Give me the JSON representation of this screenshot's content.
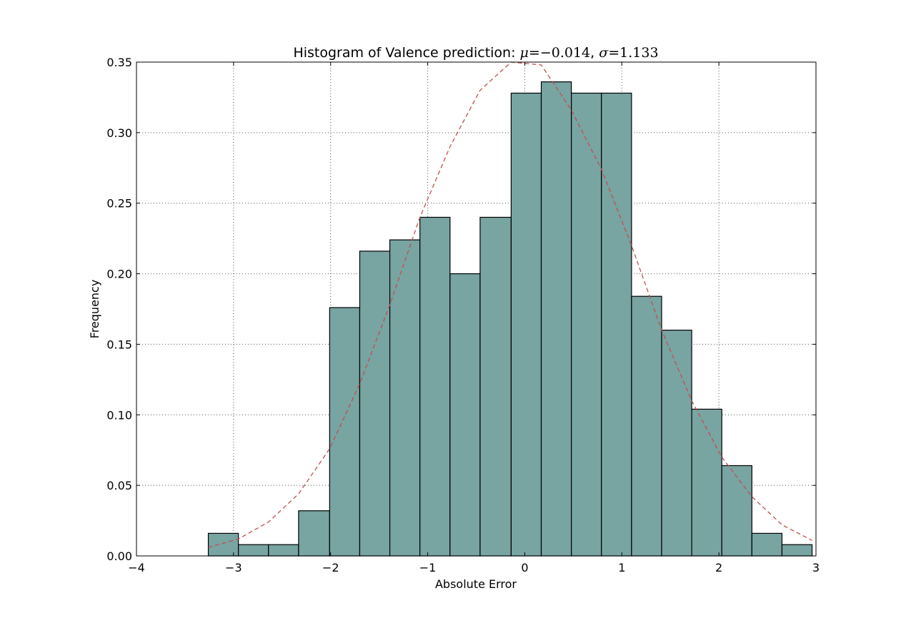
{
  "chart_data": {
    "type": "bar",
    "title": {
      "prefix": "Histogram of Valence prediction: ",
      "mu_symbol": "μ",
      "mu_eq": "=",
      "mu_value": "−0.014",
      "separator": ", ",
      "sigma_symbol": "σ",
      "sigma_eq": "=",
      "sigma_value": "1.133"
    },
    "xlabel": "Absolute Error",
    "ylabel": "Frequency",
    "xlim": [
      -4,
      3
    ],
    "ylim": [
      0,
      0.35
    ],
    "grid": true,
    "x_ticks": [
      {
        "value": -4,
        "label": "−4"
      },
      {
        "value": -3,
        "label": "−3"
      },
      {
        "value": -2,
        "label": "−2"
      },
      {
        "value": -1,
        "label": "−1"
      },
      {
        "value": 0,
        "label": "0"
      },
      {
        "value": 1,
        "label": "1"
      },
      {
        "value": 2,
        "label": "2"
      },
      {
        "value": 3,
        "label": "3"
      }
    ],
    "y_ticks": [
      {
        "value": 0.0,
        "label": "0.00"
      },
      {
        "value": 0.05,
        "label": "0.05"
      },
      {
        "value": 0.1,
        "label": "0.10"
      },
      {
        "value": 0.15,
        "label": "0.15"
      },
      {
        "value": 0.2,
        "label": "0.20"
      },
      {
        "value": 0.25,
        "label": "0.25"
      },
      {
        "value": 0.3,
        "label": "0.30"
      },
      {
        "value": 0.35,
        "label": "0.35"
      }
    ],
    "bin_edges": [
      -3.26,
      -2.95,
      -2.64,
      -2.33,
      -2.01,
      -1.7,
      -1.39,
      -1.08,
      -0.77,
      -0.46,
      -0.14,
      0.17,
      0.48,
      0.79,
      1.1,
      1.41,
      1.72,
      2.03,
      2.34,
      2.65,
      2.96
    ],
    "values": [
      0.016,
      0.008,
      0.008,
      0.032,
      0.176,
      0.216,
      0.224,
      0.24,
      0.2,
      0.24,
      0.328,
      0.336,
      0.328,
      0.328,
      0.184,
      0.16,
      0.104,
      0.064,
      0.016,
      0.008
    ],
    "fit_curve": {
      "x": [
        -3.26,
        -2.95,
        -2.64,
        -2.33,
        -2.01,
        -1.7,
        -1.39,
        -1.08,
        -0.77,
        -0.46,
        -0.14,
        0.17,
        0.48,
        0.79,
        1.1,
        1.41,
        1.72,
        2.03,
        2.34,
        2.65,
        2.96
      ],
      "y": [
        0.006,
        0.012,
        0.024,
        0.044,
        0.076,
        0.122,
        0.178,
        0.24,
        0.29,
        0.33,
        0.35,
        0.348,
        0.316,
        0.274,
        0.22,
        0.16,
        0.11,
        0.07,
        0.042,
        0.022,
        0.011
      ]
    },
    "colors": {
      "bar_fill": "#78a4a2",
      "bar_edge": "#000000",
      "curve": "#c0504d",
      "grid": "#555555",
      "axes": "#000000"
    }
  }
}
